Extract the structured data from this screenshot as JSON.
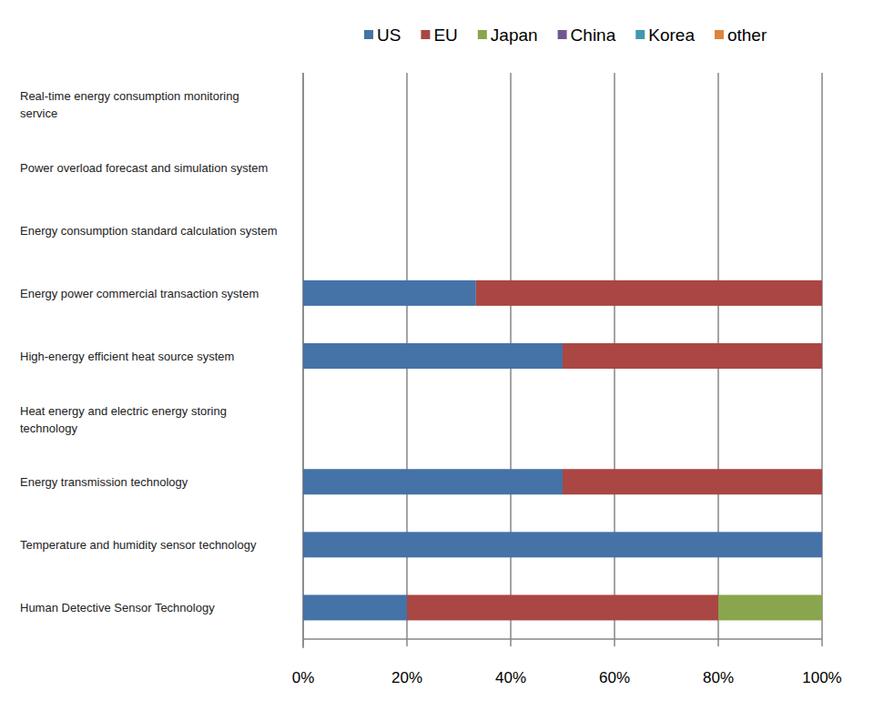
{
  "chart_data": {
    "type": "bar",
    "orientation": "horizontal",
    "stacked": true,
    "grid": true,
    "legend": "top",
    "categories": [
      "Real-time energy consumption monitoring service",
      "Power overload forecast and simulation system",
      "Energy consumption standard calculation system",
      "Energy power commercial transaction system",
      "High-energy efficient heat source system",
      "Heat energy and electric energy storing technology",
      "Energy transmission technology",
      "Temperature and humidity sensor technology",
      "Human Detective Sensor Technology"
    ],
    "series": [
      {
        "name": "US",
        "color": "#4572a7",
        "values": [
          0,
          0,
          0,
          33.3,
          50,
          0,
          50,
          100,
          20
        ]
      },
      {
        "name": "EU",
        "color": "#aa4643",
        "values": [
          0,
          0,
          0,
          66.7,
          50,
          0,
          50,
          0,
          60
        ]
      },
      {
        "name": "Japan",
        "color": "#89a54e",
        "values": [
          0,
          0,
          0,
          0,
          0,
          0,
          0,
          0,
          20
        ]
      },
      {
        "name": "China",
        "color": "#71588f",
        "values": [
          0,
          0,
          0,
          0,
          0,
          0,
          0,
          0,
          0
        ]
      },
      {
        "name": "Korea",
        "color": "#4198af",
        "values": [
          0,
          0,
          0,
          0,
          0,
          0,
          0,
          0,
          0
        ]
      },
      {
        "name": "other",
        "color": "#db843d",
        "values": [
          0,
          0,
          0,
          0,
          0,
          0,
          0,
          0,
          0
        ]
      }
    ],
    "xlim": [
      0,
      100
    ],
    "xticks": [
      {
        "value": 0,
        "label": "0%"
      },
      {
        "value": 20,
        "label": "20%"
      },
      {
        "value": 40,
        "label": "40%"
      },
      {
        "value": 60,
        "label": "60%"
      },
      {
        "value": 80,
        "label": "80%"
      },
      {
        "value": 100,
        "label": "100%"
      }
    ]
  }
}
